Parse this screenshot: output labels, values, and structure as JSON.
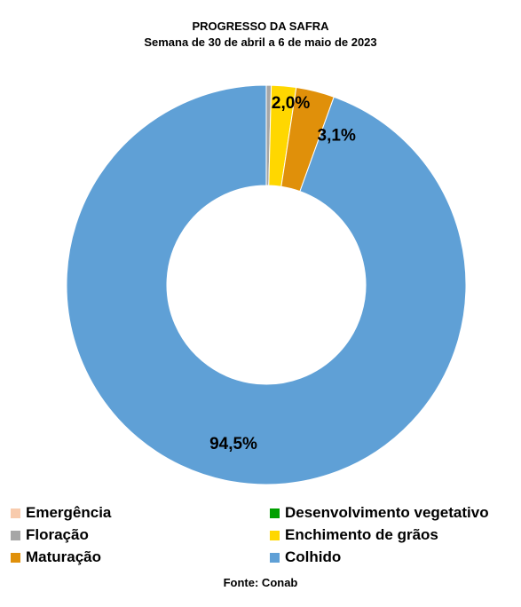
{
  "chart_data": {
    "type": "pie",
    "title": "PROGRESSO DA SAFRA",
    "subtitle": "Semana de 30 de abril a 6 de maio de 2023",
    "series": [
      {
        "name": "Emergência",
        "value": 0.0,
        "color": "#F8CBAD"
      },
      {
        "name": "Desenvolvimento vegetativo",
        "value": 0.0,
        "color": "#00A000"
      },
      {
        "name": "Floração",
        "value": 0.4,
        "color": "#A6A6A6"
      },
      {
        "name": "Enchimento de grãos",
        "value": 2.0,
        "color": "#FFD700"
      },
      {
        "name": "Maturação",
        "value": 3.1,
        "color": "#E0900A"
      },
      {
        "name": "Colhido",
        "value": 94.5,
        "color": "#5FA0D6"
      }
    ],
    "data_labels": [
      {
        "series": "Enchimento de grãos",
        "text": "2,0%"
      },
      {
        "series": "Maturação",
        "text": "3,1%"
      },
      {
        "series": "Colhido",
        "text": "94,5%"
      }
    ],
    "hole": "donut",
    "legend_position": "bottom",
    "source": "Fonte: Conab"
  }
}
